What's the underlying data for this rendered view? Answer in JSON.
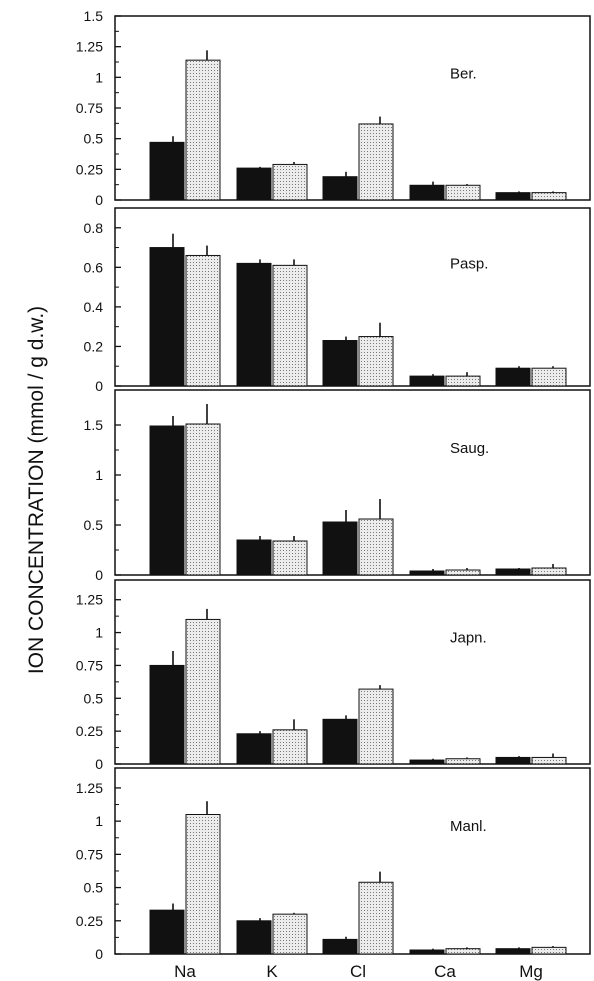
{
  "chart_data": {
    "type": "bar",
    "ylabel": "ION CONCENTRATION (mmol / g d.w.)",
    "categories": [
      "Na",
      "K",
      "Cl",
      "Ca",
      "Mg"
    ],
    "colors": {
      "dark": "#111111",
      "light": "#e9e9e9"
    },
    "panels": [
      {
        "name": "Ber.",
        "ylim": [
          0,
          1.5
        ],
        "yticks": [
          0,
          0.25,
          0.5,
          0.75,
          1,
          1.25,
          1.5
        ],
        "ytick_labels": [
          "0",
          "0.25",
          "0.5",
          "0.75",
          "1",
          "1.25",
          "1.5"
        ],
        "series": [
          {
            "values": [
              0.47,
              0.26,
              0.19,
              0.12,
              0.06
            ],
            "errors": [
              0.05,
              0.01,
              0.04,
              0.03,
              0.01
            ]
          },
          {
            "values": [
              1.14,
              0.29,
              0.62,
              0.12,
              0.06
            ],
            "errors": [
              0.08,
              0.02,
              0.06,
              0.01,
              0.01
            ]
          }
        ]
      },
      {
        "name": "Pasp.",
        "ylim": [
          0,
          0.9
        ],
        "yticks": [
          0,
          0.2,
          0.4,
          0.6,
          0.8
        ],
        "ytick_labels": [
          "0",
          "0.2",
          "0.4",
          "0.6",
          "0.8"
        ],
        "series": [
          {
            "values": [
              0.7,
              0.62,
              0.23,
              0.05,
              0.09
            ],
            "errors": [
              0.07,
              0.02,
              0.02,
              0.01,
              0.01
            ]
          },
          {
            "values": [
              0.66,
              0.61,
              0.25,
              0.05,
              0.09
            ],
            "errors": [
              0.05,
              0.03,
              0.07,
              0.02,
              0.01
            ]
          }
        ]
      },
      {
        "name": "Saug.",
        "ylim": [
          0,
          1.85
        ],
        "yticks": [
          0,
          0.5,
          1,
          1.5
        ],
        "ytick_labels": [
          "0",
          "0.5",
          "1",
          "1.5"
        ],
        "series": [
          {
            "values": [
              1.49,
              0.35,
              0.53,
              0.04,
              0.06
            ],
            "errors": [
              0.1,
              0.04,
              0.12,
              0.02,
              0.01
            ]
          },
          {
            "values": [
              1.51,
              0.34,
              0.56,
              0.05,
              0.07
            ],
            "errors": [
              0.2,
              0.05,
              0.2,
              0.02,
              0.04
            ]
          }
        ]
      },
      {
        "name": "Japn.",
        "ylim": [
          0,
          1.4
        ],
        "yticks": [
          0,
          0.25,
          0.5,
          0.75,
          1,
          1.25
        ],
        "ytick_labels": [
          "0",
          "0.25",
          "0.5",
          "0.75",
          "1",
          "1.25"
        ],
        "series": [
          {
            "values": [
              0.75,
              0.23,
              0.34,
              0.03,
              0.05
            ],
            "errors": [
              0.11,
              0.02,
              0.03,
              0.01,
              0.01
            ]
          },
          {
            "values": [
              1.1,
              0.26,
              0.57,
              0.04,
              0.05
            ],
            "errors": [
              0.08,
              0.08,
              0.03,
              0.01,
              0.03
            ]
          }
        ]
      },
      {
        "name": "Manl.",
        "ylim": [
          0,
          1.4
        ],
        "yticks": [
          0,
          0.25,
          0.5,
          0.75,
          1,
          1.25
        ],
        "ytick_labels": [
          "0",
          "0.25",
          "0.5",
          "0.75",
          "1",
          "1.25"
        ],
        "series": [
          {
            "values": [
              0.33,
              0.25,
              0.11,
              0.03,
              0.04
            ],
            "errors": [
              0.05,
              0.02,
              0.02,
              0.01,
              0.01
            ]
          },
          {
            "values": [
              1.05,
              0.3,
              0.54,
              0.04,
              0.05
            ],
            "errors": [
              0.1,
              0.01,
              0.08,
              0.01,
              0.01
            ]
          }
        ]
      }
    ]
  }
}
